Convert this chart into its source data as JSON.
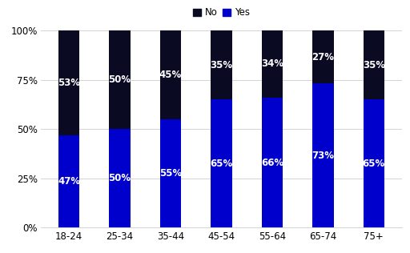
{
  "categories": [
    "18-24",
    "25-34",
    "35-44",
    "45-54",
    "55-64",
    "65-74",
    "75+"
  ],
  "yes_values": [
    47,
    50,
    55,
    65,
    66,
    73,
    65
  ],
  "no_values": [
    53,
    50,
    45,
    35,
    34,
    27,
    35
  ],
  "yes_color": "#0000cc",
  "no_color": "#0a0a23",
  "yes_label": "Yes",
  "no_label": "No",
  "yticks": [
    0,
    25,
    50,
    75,
    100
  ],
  "ytick_labels": [
    "0%",
    "25%",
    "50%",
    "75%",
    "100%"
  ],
  "background_color": "#ffffff",
  "text_color": "#ffffff",
  "label_fontsize": 8.5,
  "tick_fontsize": 8.5,
  "legend_fontsize": 8.5,
  "bar_width": 0.42
}
